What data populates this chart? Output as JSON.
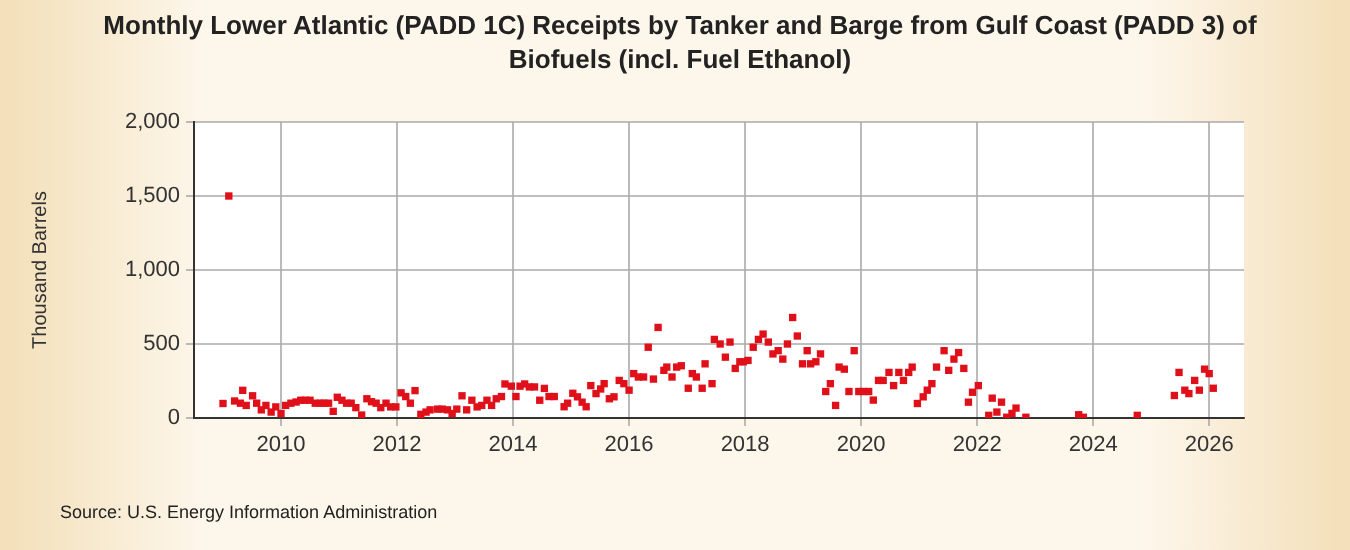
{
  "chart_data": {
    "type": "scatter",
    "title": "Monthly Lower Atlantic (PADD 1C) Receipts by Tanker and Barge from Gulf Coast (PADD 3) of Biofuels (incl. Fuel Ethanol)",
    "ylabel": "Thousand Barrels",
    "annotations": [
      "Source: U.S. Energy Information Administration"
    ],
    "x": [
      2009.0,
      2009.1,
      2009.2,
      2009.3,
      2009.34,
      2009.4,
      2009.51,
      2009.58,
      2009.66,
      2009.74,
      2009.83,
      2009.91,
      2010.0,
      2010.08,
      2010.17,
      2010.26,
      2010.34,
      2010.42,
      2010.5,
      2010.59,
      2010.68,
      2010.74,
      2010.82,
      2010.9,
      2010.97,
      2011.05,
      2011.13,
      2011.21,
      2011.29,
      2011.39,
      2011.48,
      2011.56,
      2011.64,
      2011.72,
      2011.81,
      2011.89,
      2011.98,
      2012.07,
      2012.15,
      2012.23,
      2012.31,
      2012.41,
      2012.5,
      2012.57,
      2012.7,
      2012.78,
      2012.87,
      2012.95,
      2013.03,
      2013.12,
      2013.2,
      2013.29,
      2013.38,
      2013.46,
      2013.55,
      2013.63,
      2013.71,
      2013.8,
      2013.86,
      2013.97,
      2014.05,
      2014.12,
      2014.2,
      2014.28,
      2014.37,
      2014.46,
      2014.54,
      2014.62,
      2014.71,
      2014.88,
      2014.94,
      2015.03,
      2015.11,
      2015.19,
      2015.26,
      2015.34,
      2015.43,
      2015.51,
      2015.57,
      2015.66,
      2015.74,
      2015.83,
      2015.91,
      2016.0,
      2016.08,
      2016.16,
      2016.25,
      2016.33,
      2016.42,
      2016.5,
      2016.6,
      2016.65,
      2016.74,
      2016.82,
      2016.9,
      2017.02,
      2017.09,
      2017.16,
      2017.26,
      2017.31,
      2017.43,
      2017.47,
      2017.57,
      2017.66,
      2017.74,
      2017.83,
      2017.91,
      2017.97,
      2018.05,
      2018.14,
      2018.23,
      2018.31,
      2018.4,
      2018.48,
      2018.57,
      2018.65,
      2018.73,
      2018.82,
      2018.9,
      2018.99,
      2019.07,
      2019.13,
      2019.22,
      2019.3,
      2019.39,
      2019.47,
      2019.56,
      2019.62,
      2019.71,
      2019.79,
      2019.88,
      2019.96,
      2020.04,
      2020.13,
      2020.21,
      2020.3,
      2020.38,
      2020.48,
      2020.56,
      2020.65,
      2020.73,
      2020.82,
      2020.88,
      2020.97,
      2021.07,
      2021.14,
      2021.22,
      2021.3,
      2021.43,
      2021.51,
      2021.6,
      2021.68,
      2021.77,
      2021.85,
      2021.92,
      2022.02,
      2022.2,
      2022.26,
      2022.34,
      2022.42,
      2022.51,
      2022.6,
      2022.67,
      2022.84,
      2023.75,
      2023.83,
      2024.76,
      2025.4,
      2025.48,
      2025.58,
      2025.65,
      2025.75,
      2025.83,
      2025.92,
      2026.0,
      2026.07
    ],
    "series": [
      {
        "color": "#e0101a",
        "values": [
          98,
          1500,
          115,
          100,
          187,
          85,
          150,
          100,
          55,
          85,
          40,
          75,
          30,
          85,
          100,
          108,
          120,
          120,
          120,
          100,
          100,
          100,
          100,
          45,
          140,
          120,
          100,
          100,
          70,
          20,
          130,
          110,
          100,
          70,
          100,
          75,
          75,
          170,
          145,
          100,
          185,
          25,
          40,
          55,
          60,
          60,
          55,
          30,
          60,
          150,
          55,
          120,
          75,
          85,
          120,
          85,
          130,
          145,
          230,
          215,
          145,
          215,
          230,
          210,
          210,
          120,
          200,
          145,
          145,
          76,
          100,
          167,
          143,
          107,
          76,
          219,
          165,
          196,
          232,
          130,
          143,
          254,
          232,
          188,
          300,
          277,
          277,
          478,
          263,
          612,
          322,
          344,
          277,
          344,
          353,
          201,
          300,
          277,
          201,
          366,
          232,
          531,
          500,
          411,
          513,
          335,
          380,
          380,
          389,
          478,
          531,
          567,
          513,
          433,
          455,
          398,
          500,
          679,
          554,
          366,
          455,
          366,
          380,
          433,
          179,
          232,
          85,
          344,
          330,
          179,
          455,
          179,
          179,
          179,
          121,
          254,
          254,
          308,
          219,
          308,
          254,
          308,
          344,
          98,
          143,
          188,
          232,
          344,
          455,
          322,
          398,
          442,
          335,
          107,
          174,
          219,
          18,
          134,
          40,
          107,
          5,
          31,
          67,
          5,
          22,
          5,
          18,
          152,
          308,
          188,
          165,
          254,
          188,
          330,
          300,
          201
        ]
      }
    ],
    "xlim": [
      2008.5,
      2026.6
    ],
    "xticks": [
      2010,
      2012,
      2014,
      2016,
      2018,
      2020,
      2022,
      2024,
      2026
    ],
    "ylim": [
      0,
      2000
    ],
    "yticks": [
      0,
      500,
      {
        "value": 1000,
        "label": "1,000"
      },
      {
        "value": 1500,
        "label": "1,500"
      },
      {
        "value": 2000,
        "label": "2,000"
      }
    ],
    "grid": true,
    "legend": false,
    "marker": "square"
  }
}
